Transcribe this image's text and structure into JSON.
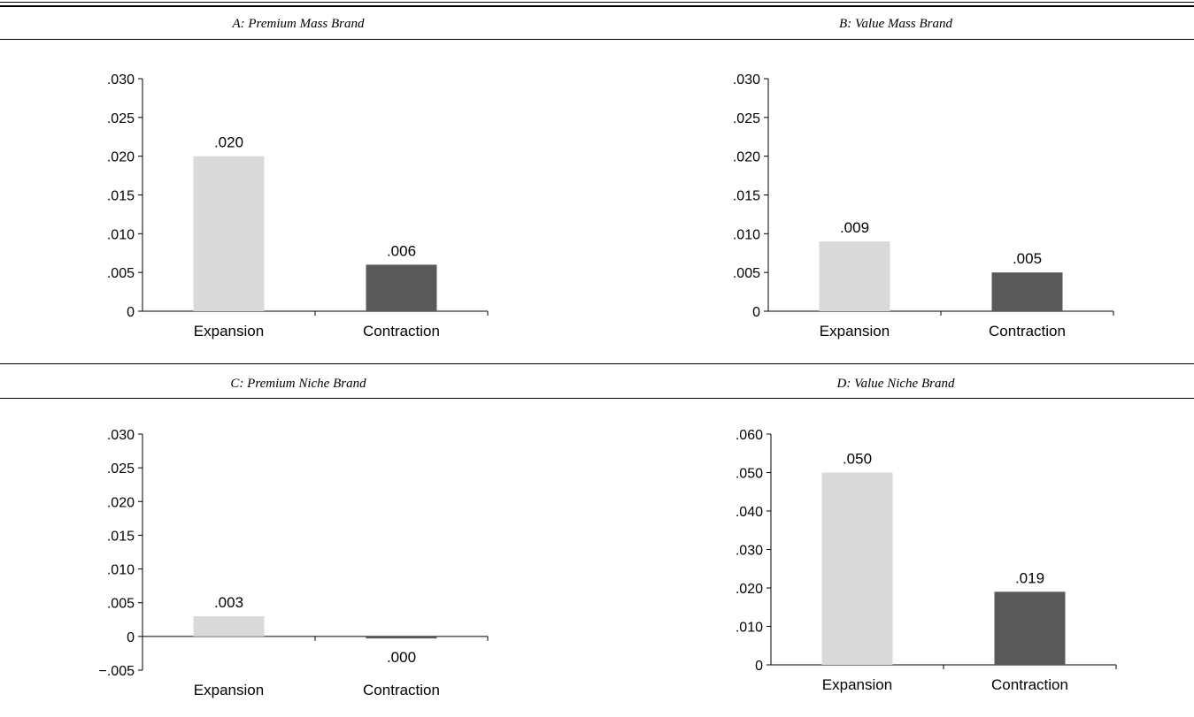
{
  "chart_data": [
    {
      "type": "bar",
      "title": "A: Premium Mass Brand",
      "categories": [
        "Expansion",
        "Contraction"
      ],
      "values": [
        0.02,
        0.006
      ],
      "value_labels": [
        ".020",
        ".006"
      ],
      "ylim": [
        0,
        0.03
      ],
      "yticks": [
        0,
        0.005,
        0.01,
        0.015,
        0.02,
        0.025,
        0.03
      ],
      "ytick_labels": [
        "0",
        ".005",
        ".010",
        ".015",
        ".020",
        ".025",
        ".030"
      ],
      "colors": [
        "#d9d9d9",
        "#595959"
      ],
      "grid": false
    },
    {
      "type": "bar",
      "title": "B: Value Mass Brand",
      "categories": [
        "Expansion",
        "Contraction"
      ],
      "values": [
        0.009,
        0.005
      ],
      "value_labels": [
        ".009",
        ".005"
      ],
      "ylim": [
        0,
        0.03
      ],
      "yticks": [
        0,
        0.005,
        0.01,
        0.015,
        0.02,
        0.025,
        0.03
      ],
      "ytick_labels": [
        "0",
        ".005",
        ".010",
        ".015",
        ".020",
        ".025",
        ".030"
      ],
      "colors": [
        "#d9d9d9",
        "#595959"
      ],
      "grid": false
    },
    {
      "type": "bar",
      "title": "C: Premium Niche Brand",
      "categories": [
        "Expansion",
        "Contraction"
      ],
      "values": [
        0.003,
        -0.0003
      ],
      "value_labels": [
        ".003",
        ".000"
      ],
      "ylim": [
        -0.005,
        0.03
      ],
      "yticks": [
        -0.005,
        0,
        0.005,
        0.01,
        0.015,
        0.02,
        0.025,
        0.03
      ],
      "ytick_labels": [
        "−.005",
        "0",
        ".005",
        ".010",
        ".015",
        ".020",
        ".025",
        ".030"
      ],
      "colors": [
        "#d9d9d9",
        "#595959"
      ],
      "grid": false
    },
    {
      "type": "bar",
      "title": "D: Value Niche Brand",
      "categories": [
        "Expansion",
        "Contraction"
      ],
      "values": [
        0.05,
        0.019
      ],
      "value_labels": [
        ".050",
        ".019"
      ],
      "ylim": [
        0,
        0.06
      ],
      "yticks": [
        0,
        0.01,
        0.02,
        0.03,
        0.04,
        0.05,
        0.06
      ],
      "ytick_labels": [
        "0",
        ".010",
        ".020",
        ".030",
        ".040",
        ".050",
        ".060"
      ],
      "colors": [
        "#d9d9d9",
        "#595959"
      ],
      "grid": false
    }
  ]
}
